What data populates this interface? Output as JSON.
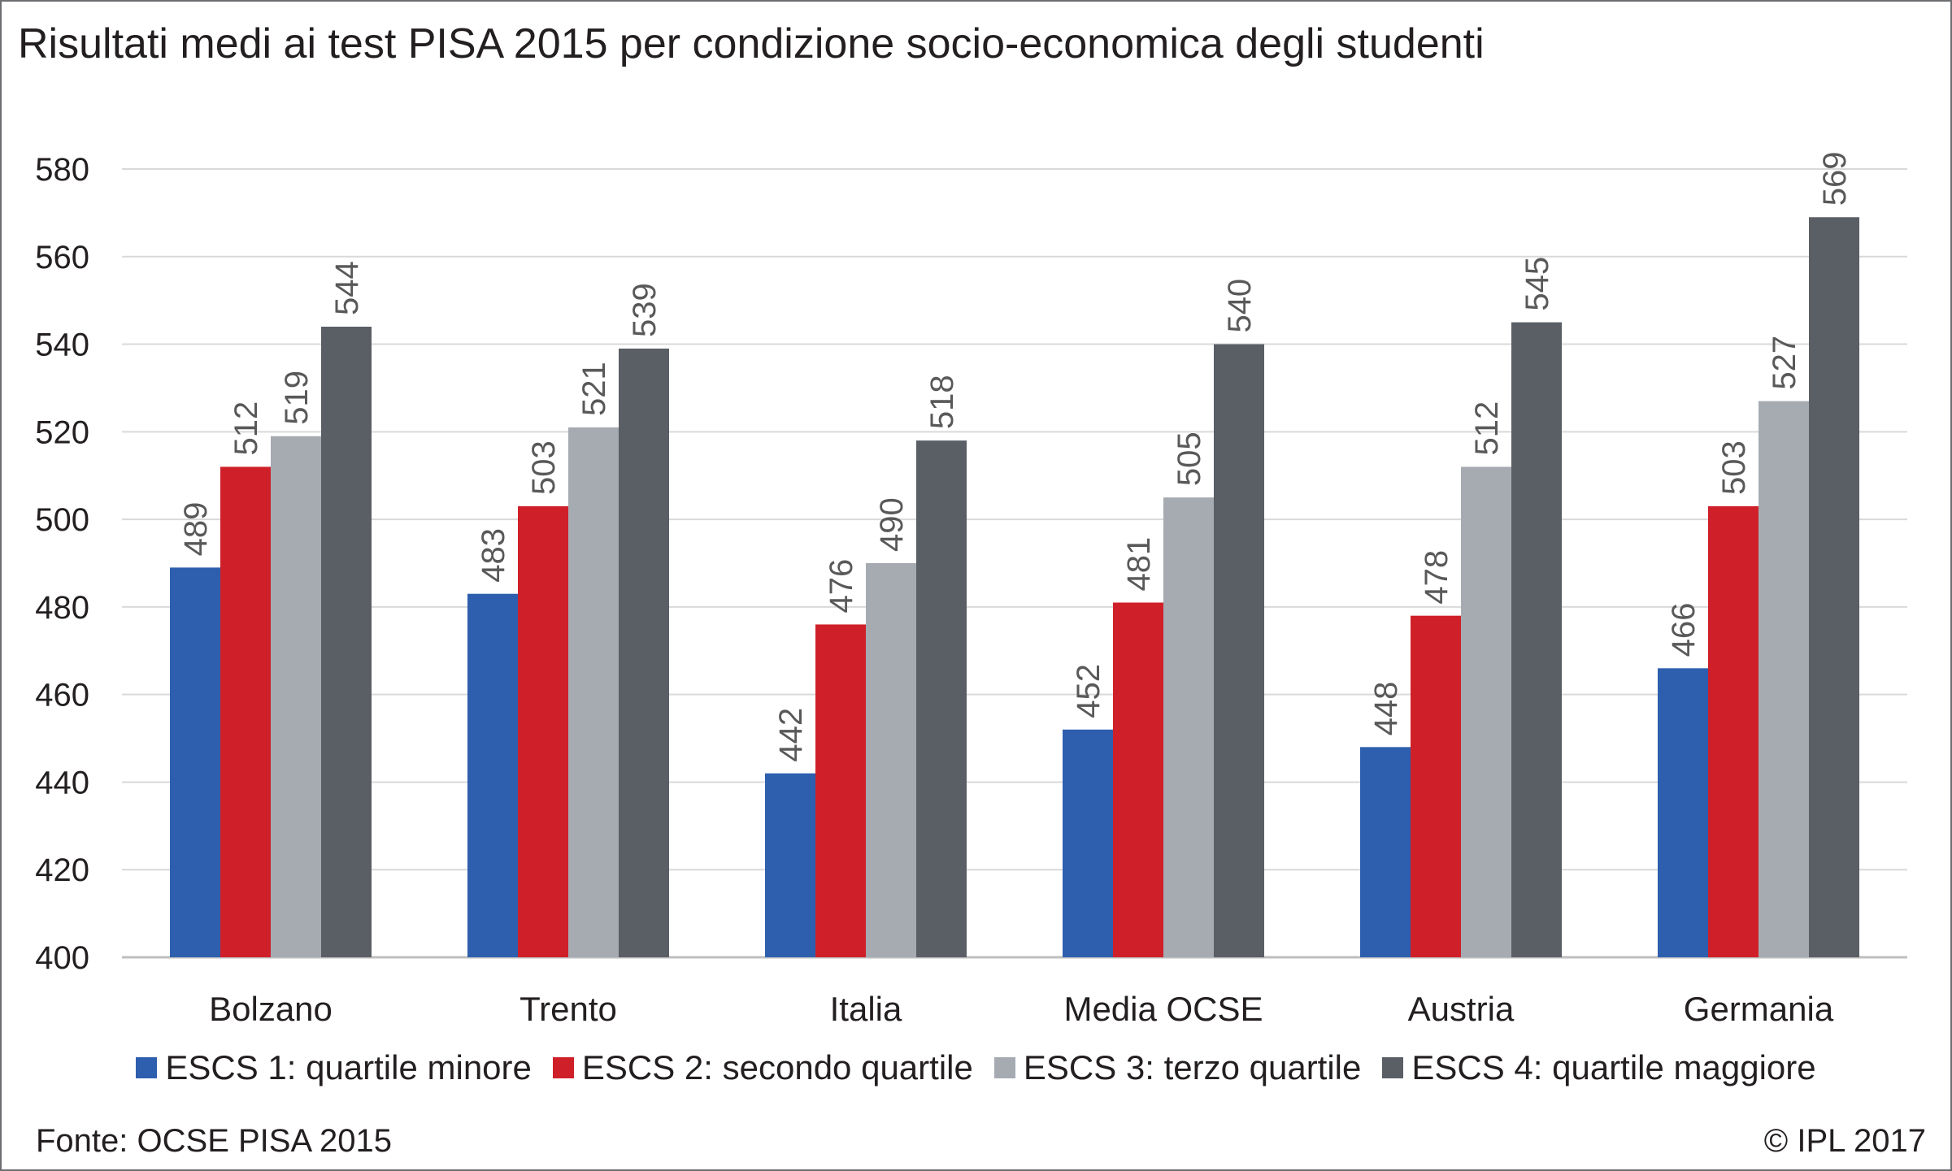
{
  "title": "Risultati medi ai test PISA 2015 per condizione socio-economica degli studenti",
  "source": "Fonte: OCSE PISA 2015",
  "copyright": "© IPL 2017",
  "colors": {
    "ESCS 1": "#2e5fae",
    "ESCS 2": "#cf2029",
    "ESCS 3": "#a6abb2",
    "ESCS 4": "#5a5e65",
    "grid": "#d9d9d9",
    "axis": "#bfbfbf",
    "text": "#231f20",
    "value_label": "#595959",
    "border": "#6d6e71"
  },
  "chart_data": {
    "type": "bar",
    "title": "Risultati medi ai test PISA 2015 per condizione socio-economica degli studenti",
    "xlabel": "",
    "ylabel": "",
    "ylim": [
      400,
      580
    ],
    "yticks": [
      400,
      420,
      440,
      460,
      480,
      500,
      520,
      540,
      560,
      580
    ],
    "grid": true,
    "legend_position": "bottom",
    "categories": [
      "Bolzano",
      "Trento",
      "Italia",
      "Media OCSE",
      "Austria",
      "Germania"
    ],
    "series": [
      {
        "name": "ESCS 1: quartile minore",
        "color": "#2e5fae",
        "values": [
          489,
          483,
          442,
          452,
          448,
          466
        ]
      },
      {
        "name": "ESCS 2: secondo quartile",
        "color": "#cf2029",
        "values": [
          512,
          503,
          476,
          481,
          478,
          503
        ]
      },
      {
        "name": "ESCS 3: terzo quartile",
        "color": "#a6abb2",
        "values": [
          519,
          521,
          490,
          505,
          512,
          527
        ]
      },
      {
        "name": "ESCS 4: quartile maggiore",
        "color": "#5a5e65",
        "values": [
          544,
          539,
          518,
          540,
          545,
          569
        ]
      }
    ]
  }
}
